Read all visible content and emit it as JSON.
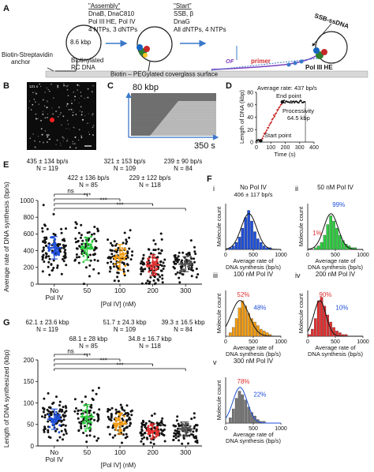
{
  "panelA": {
    "label": "A",
    "assembly": {
      "title": "\"Assembly\"",
      "lines": [
        "DnaB, DnaC810",
        "Pol III HE, Pol IV",
        "4 NTPs, 3 dNTPs"
      ]
    },
    "start": {
      "title": "\"Start\"",
      "lines": [
        "SSB, β",
        "DnaG",
        "All dNTPs, 4 NTPs"
      ]
    },
    "plasmid_size": "8.6 kbp",
    "anchor_label": [
      "Biotin-Streptavidin",
      "anchor"
    ],
    "template_label": [
      "Biotinylated",
      "RC DNA"
    ],
    "surface_label": "Biotin – PEGylated coverglass surface",
    "ssb_label": "SSB-ssDNA",
    "of_label": "OF",
    "primer_label": "primer",
    "pol_label": "Pol III HE"
  },
  "panelB": {
    "label": "B",
    "timestamp": "121 s"
  },
  "panelC": {
    "label": "C",
    "y_label": "80 kbp",
    "x_label": "350 s"
  },
  "panelD": {
    "label": "D",
    "avg_rate": "Average rate: 437 bp/s",
    "end_point": "End point",
    "processivity": [
      "Processivity",
      "64.5 kbp"
    ],
    "start_point": "Start point",
    "ylabel": "Length of DNA (kbp)",
    "xlabel": "Time (s)",
    "y_ticks": [
      "0",
      "20",
      "40",
      "60",
      "80"
    ],
    "x_ticks": [
      "0",
      "100",
      "200",
      "300",
      "400"
    ]
  },
  "panelE": {
    "label": "E",
    "ylabel": "Average rate of DNA synthesis (bp/s)",
    "xlabel": "[Pol IV] (nM)",
    "y_ticks": [
      "0",
      "200",
      "400",
      "600",
      "800",
      "1000"
    ],
    "categories": [
      "No Pol IV",
      "50",
      "100",
      "200",
      "300"
    ],
    "stats_row1": [
      [
        "435 ± 134 bp/s",
        "N = 119"
      ],
      [
        "321 ± 153 bp/s",
        "N = 109"
      ],
      [
        "239 ± 90 bp/s",
        "N = 84"
      ]
    ],
    "stats_row2": [
      [
        "422 ± 136 bp/s",
        "N = 85"
      ],
      [
        "229 ± 122 bp/s",
        "N = 118"
      ]
    ],
    "sig": [
      "ns",
      "***",
      "***",
      "***"
    ]
  },
  "panelG": {
    "label": "G",
    "ylabel": "Length of DNA synthesized (kbp)",
    "xlabel": "[Pol IV] (nM)",
    "y_ticks": [
      "0",
      "50",
      "100",
      "150",
      "200"
    ],
    "categories": [
      "No Pol IV",
      "50",
      "100",
      "200",
      "300"
    ],
    "stats_row1": [
      [
        "62.1 ± 23.6 kbp",
        "N = 119"
      ],
      [
        "51.7 ± 24.3 kbp",
        "N = 109"
      ],
      [
        "39.3 ± 16.5 kbp",
        "N = 84"
      ]
    ],
    "stats_row2": [
      [
        "68.1 ± 28 kbp",
        "N = 85"
      ],
      [
        "34.8 ± 16.7 kbp",
        "N = 118"
      ]
    ],
    "sig": [
      "ns",
      "***",
      "***",
      "***"
    ]
  },
  "panelF": {
    "label": "F",
    "ylabel": "Molecule count",
    "xlabel": [
      "Average rate of",
      "DNA synthesis (bp/s)"
    ],
    "x_ticks": [
      "0",
      "500",
      "1000"
    ],
    "subpanels": [
      {
        "roman": "i",
        "title": "No Pol IV",
        "stat": "406 ± 117 bp/s",
        "color": "#1f4fd8",
        "pct_a": "",
        "pct_b": ""
      },
      {
        "roman": "ii",
        "title": "50 nM Pol IV",
        "stat": "",
        "color": "#2ecc40",
        "pct_a": "1%",
        "pct_b": "99%"
      },
      {
        "roman": "iii",
        "title": "100 nM Pol IV",
        "stat": "",
        "color": "#f39c12",
        "pct_a": "52%",
        "pct_b": "48%"
      },
      {
        "roman": "iv",
        "title": "200 nM Pol IV",
        "stat": "",
        "color": "#e03030",
        "pct_a": "90%",
        "pct_b": "10%"
      },
      {
        "roman": "v",
        "title": "300 nM Pol IV",
        "stat": "",
        "color": "#777777",
        "pct_a": "78%",
        "pct_b": "22%"
      }
    ]
  },
  "colors": {
    "no_pol": "#1f4fd8",
    "c50": "#2ecc40",
    "c100": "#f39c12",
    "c200": "#e03030",
    "c300": "#555555",
    "pct_red": "#e03030",
    "pct_blue": "#1f4fd8"
  }
}
